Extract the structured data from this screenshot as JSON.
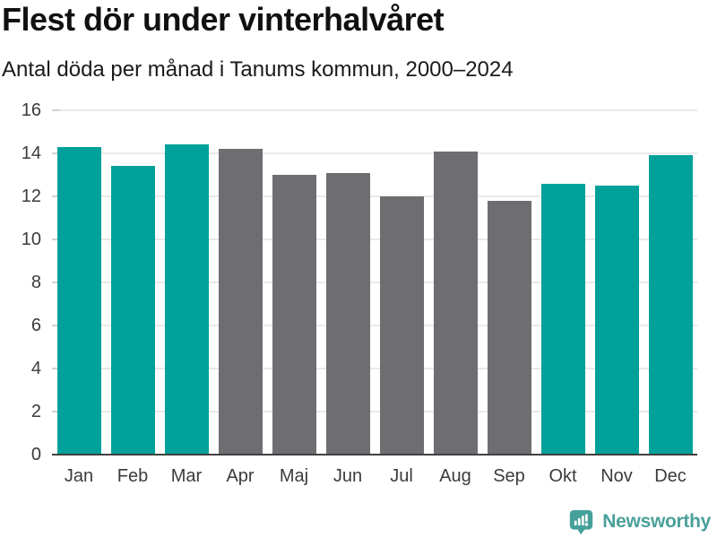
{
  "header": {
    "title": "Flest dör under vinterhalvåret",
    "subtitle": "Antal döda per månad i Tanums kommun, 2000–2024"
  },
  "chart_data": {
    "type": "bar",
    "title": "Flest dör under vinterhalvåret",
    "subtitle": "Antal döda per månad i Tanums kommun, 2000–2024",
    "categories": [
      "Jan",
      "Feb",
      "Mar",
      "Apr",
      "Maj",
      "Jun",
      "Jul",
      "Aug",
      "Sep",
      "Okt",
      "Nov",
      "Dec"
    ],
    "values": [
      14.3,
      13.4,
      14.4,
      14.2,
      13.0,
      13.1,
      12.0,
      14.1,
      11.8,
      12.6,
      12.5,
      13.9
    ],
    "bar_colors": [
      "#00a19a",
      "#00a19a",
      "#00a19a",
      "#6e6d71",
      "#6e6d71",
      "#6e6d71",
      "#6e6d71",
      "#6e6d71",
      "#6e6d71",
      "#00a19a",
      "#00a19a",
      "#00a19a"
    ],
    "highlight_color": "#00a19a",
    "muted_color": "#6e6d71",
    "xlabel": "",
    "ylabel": "",
    "ylim": [
      0,
      16
    ],
    "yticks": [
      0,
      2,
      4,
      6,
      8,
      10,
      12,
      14,
      16
    ],
    "grid": true,
    "legend": false,
    "gridline_color": "#e9e9e9",
    "axis_color": "#414141",
    "tick_label_color": "#3b3b3b"
  },
  "footer": {
    "brand": "Newsworthy",
    "brand_color": "#4aa09a",
    "icon": "newsworthy-logo-icon",
    "icon_color": "#45a09a",
    "icon_glyph_color": "#ffffff"
  }
}
